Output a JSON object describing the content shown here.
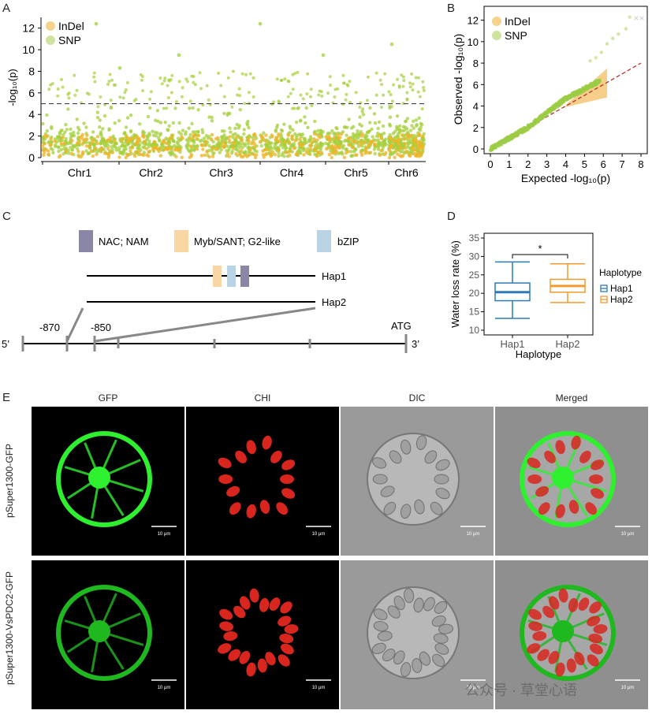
{
  "panels": {
    "a": "A",
    "b": "B",
    "c": "C",
    "d": "D",
    "e": "E"
  },
  "panel_a": {
    "legend": [
      "InDel",
      "SNP"
    ],
    "y_label": "-log₁₀(p)",
    "y_ticks": [
      "0",
      "2",
      "4",
      "6",
      "8",
      "10",
      "12"
    ],
    "chromosomes": [
      "Chr1",
      "Chr2",
      "Chr3",
      "Chr4",
      "Chr5",
      "Chr6"
    ],
    "threshold": 5,
    "colors": {
      "indel": "#f0b429",
      "snp": "#a6cf3c"
    }
  },
  "panel_b": {
    "legend": [
      "InDel",
      "SNP"
    ],
    "x_label": "Expected -log₁₀(p)",
    "y_label": "Observed -log₁₀(p)",
    "x_ticks": [
      "0",
      "1",
      "2",
      "3",
      "4",
      "5",
      "6",
      "7",
      "8"
    ],
    "y_ticks": [
      "0",
      "2",
      "4",
      "6",
      "8",
      "10",
      "12"
    ]
  },
  "panel_c": {
    "legend": [
      {
        "label": "NAC; NAM",
        "color": "#8a86a6"
      },
      {
        "label": "Myb/SANT; G2-like",
        "color": "#f8d7a5"
      },
      {
        "label": "bZIP",
        "color": "#b9d3e5"
      }
    ],
    "hap1": "Hap1",
    "hap2": "Hap2",
    "pos1": "-870",
    "pos2": "-850",
    "atg": "ATG",
    "five_prime": "5’",
    "three_prime": "3’"
  },
  "chart_data": {
    "type": "box",
    "y_label": "Water loss rate (%)",
    "x_label": "Haplotype",
    "categories": [
      "Hap1",
      "Hap2"
    ],
    "y_ticks": [
      "10",
      "15",
      "20",
      "25",
      "30",
      "35"
    ],
    "ylim": [
      10,
      35
    ],
    "significance": "*",
    "legend_title": "Haplotype",
    "series": [
      {
        "name": "Hap1",
        "color": "#2c7bb6",
        "min": 13.2,
        "q1": 18.0,
        "median": 20.3,
        "q3": 22.8,
        "max": 28.5
      },
      {
        "name": "Hap2",
        "color": "#f29b2f",
        "min": 17.5,
        "q1": 20.3,
        "median": 22.0,
        "q3": 23.8,
        "max": 28.0
      }
    ]
  },
  "panel_e": {
    "columns": [
      "GFP",
      "CHI",
      "DIC",
      "Merged"
    ],
    "rows": [
      "pSuper1300-GFP",
      "pSuper1300-VsPDC2-GFP"
    ],
    "scale": "10 μm"
  },
  "watermark": "公众号 · 草堂心语"
}
